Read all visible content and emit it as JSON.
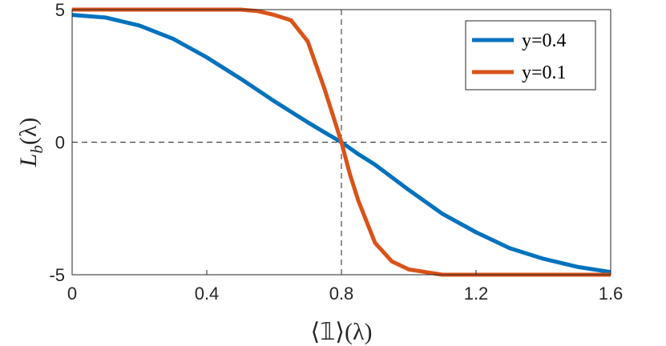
{
  "chart_data": {
    "type": "line",
    "xlabel": "⟨𝟙⟩(λ)",
    "ylabel_main": "L",
    "ylabel_sub": "b",
    "ylabel_arg": "(λ)",
    "xlim": [
      0,
      1.6
    ],
    "ylim": [
      -5,
      5
    ],
    "xticks": [
      0,
      0.4,
      0.8,
      1.2,
      1.6
    ],
    "xtick_labels": [
      "0",
      "0.4",
      "0.8",
      "1.2",
      "1.6"
    ],
    "yticks": [
      -5,
      0,
      5
    ],
    "ytick_labels": [
      "-5",
      "0",
      "5"
    ],
    "grid": false,
    "legend_position": "top-right",
    "reference_lines": [
      {
        "orientation": "vertical",
        "value": 0.8,
        "style": "dashed"
      },
      {
        "orientation": "horizontal",
        "value": 0,
        "style": "dashed"
      }
    ],
    "series": [
      {
        "name": "y=0.4",
        "color": "#0072BD",
        "x": [
          0,
          0.1,
          0.2,
          0.3,
          0.4,
          0.5,
          0.6,
          0.7,
          0.75,
          0.8,
          0.85,
          0.9,
          1.0,
          1.1,
          1.2,
          1.3,
          1.4,
          1.5,
          1.6
        ],
        "y": [
          4.8,
          4.7,
          4.4,
          3.9,
          3.2,
          2.4,
          1.55,
          0.75,
          0.37,
          0.0,
          -0.45,
          -0.85,
          -1.8,
          -2.7,
          -3.4,
          -4.0,
          -4.4,
          -4.7,
          -4.9
        ]
      },
      {
        "name": "y=0.1",
        "color": "#D95319",
        "x": [
          0,
          0.2,
          0.4,
          0.5,
          0.55,
          0.6,
          0.65,
          0.7,
          0.725,
          0.75,
          0.775,
          0.8,
          0.825,
          0.85,
          0.875,
          0.9,
          0.95,
          1.0,
          1.05,
          1.1,
          1.2,
          1.4,
          1.6
        ],
        "y": [
          5.0,
          5.0,
          5.0,
          5.0,
          4.95,
          4.8,
          4.6,
          3.8,
          2.9,
          2.0,
          1.0,
          0.0,
          -1.2,
          -2.2,
          -3.0,
          -3.8,
          -4.5,
          -4.8,
          -4.9,
          -5.0,
          -5.0,
          -5.0,
          -5.0
        ]
      }
    ]
  }
}
